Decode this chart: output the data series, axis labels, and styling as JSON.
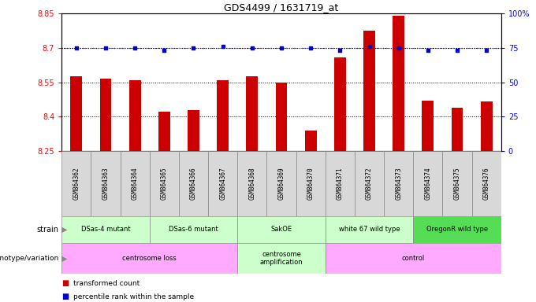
{
  "title": "GDS4499 / 1631719_at",
  "samples": [
    "GSM864362",
    "GSM864363",
    "GSM864364",
    "GSM864365",
    "GSM864366",
    "GSM864367",
    "GSM864368",
    "GSM864369",
    "GSM864370",
    "GSM864371",
    "GSM864372",
    "GSM864373",
    "GSM864374",
    "GSM864375",
    "GSM864376"
  ],
  "bar_values": [
    8.575,
    8.565,
    8.56,
    8.42,
    8.43,
    8.56,
    8.575,
    8.55,
    8.34,
    8.66,
    8.775,
    8.84,
    8.47,
    8.44,
    8.465
  ],
  "dot_values": [
    75,
    75,
    75,
    73,
    75,
    76,
    75,
    75,
    75,
    73,
    76,
    75,
    73,
    73,
    73
  ],
  "ylim_left": [
    8.25,
    8.85
  ],
  "ylim_right": [
    0,
    100
  ],
  "yticks_left": [
    8.25,
    8.4,
    8.55,
    8.7,
    8.85
  ],
  "yticks_right": [
    0,
    25,
    50,
    75,
    100
  ],
  "ytick_labels_right": [
    "0",
    "25",
    "50",
    "75",
    "100%"
  ],
  "bar_color": "#cc0000",
  "dot_color": "#0000cc",
  "strain_data": [
    {
      "label": "DSas-4 mutant",
      "start": 0,
      "end": 3,
      "color": "#ccffcc"
    },
    {
      "label": "DSas-6 mutant",
      "start": 3,
      "end": 6,
      "color": "#ccffcc"
    },
    {
      "label": "SakOE",
      "start": 6,
      "end": 9,
      "color": "#ccffcc"
    },
    {
      "label": "white 67 wild type",
      "start": 9,
      "end": 12,
      "color": "#ccffcc"
    },
    {
      "label": "OregonR wild type",
      "start": 12,
      "end": 15,
      "color": "#55dd55"
    }
  ],
  "geno_data": [
    {
      "label": "centrosome loss",
      "start": 0,
      "end": 6,
      "color": "#ffaaff"
    },
    {
      "label": "centrosome\namplification",
      "start": 6,
      "end": 9,
      "color": "#ccffcc"
    },
    {
      "label": "control",
      "start": 9,
      "end": 15,
      "color": "#ffaaff"
    }
  ],
  "legend_items": [
    "transformed count",
    "percentile rank within the sample"
  ],
  "legend_colors": [
    "#cc0000",
    "#0000cc"
  ]
}
